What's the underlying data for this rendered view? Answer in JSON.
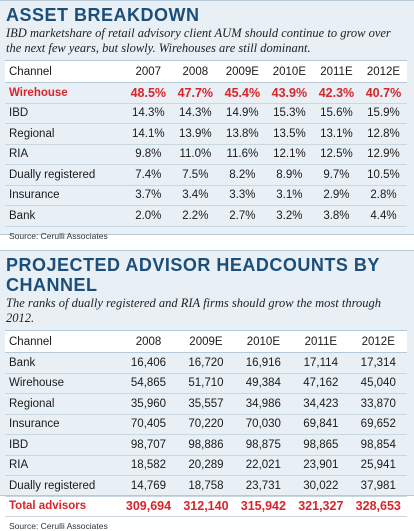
{
  "asset_breakdown": {
    "title": "ASSET BREAKDOWN",
    "subtitle": "IBD marketshare of retail advisory client AUM should continue to grow over the next few years, but slowly. Wirehouses are still dominant.",
    "headers": [
      "Channel",
      "2007",
      "2008",
      "2009E",
      "2010E",
      "2011E",
      "2012E"
    ],
    "rows": [
      {
        "label": "Wirehouse",
        "values": [
          "48.5%",
          "47.7%",
          "45.4%",
          "43.9%",
          "42.3%",
          "40.7%"
        ]
      },
      {
        "label": "IBD",
        "values": [
          "14.3%",
          "14.3%",
          "14.9%",
          "15.3%",
          "15.6%",
          "15.9%"
        ]
      },
      {
        "label": "Regional",
        "values": [
          "14.1%",
          "13.9%",
          "13.8%",
          "13.5%",
          "13.1%",
          "12.8%"
        ]
      },
      {
        "label": "RIA",
        "values": [
          "9.8%",
          "11.0%",
          "11.6%",
          "12.1%",
          "12.5%",
          "12.9%"
        ]
      },
      {
        "label": "Dually registered",
        "values": [
          "7.4%",
          "7.5%",
          "8.2%",
          "8.9%",
          "9.7%",
          "10.5%"
        ]
      },
      {
        "label": "Insurance",
        "values": [
          "3.7%",
          "3.4%",
          "3.3%",
          "3.1%",
          "2.9%",
          "2.8%"
        ]
      },
      {
        "label": "Bank",
        "values": [
          "2.0%",
          "2.2%",
          "2.7%",
          "3.2%",
          "3.8%",
          "4.4%"
        ]
      }
    ],
    "source": "Source: Cerulli Associates"
  },
  "headcounts": {
    "title": "PROJECTED ADVISOR HEADCOUNTS BY CHANNEL",
    "subtitle": "The ranks of dually registered and RIA firms should grow the most through 2012.",
    "headers": [
      "Channel",
      "2008",
      "2009E",
      "2010E",
      "2011E",
      "2012E"
    ],
    "rows": [
      {
        "label": "Bank",
        "values": [
          "16,406",
          "16,720",
          "16,916",
          "17,114",
          "17,314"
        ]
      },
      {
        "label": "Wirehouse",
        "values": [
          "54,865",
          "51,710",
          "49,384",
          "47,162",
          "45,040"
        ]
      },
      {
        "label": "Regional",
        "values": [
          "35,960",
          "35,557",
          "34,986",
          "34,423",
          "33,870"
        ]
      },
      {
        "label": "Insurance",
        "values": [
          "70,405",
          "70,220",
          "70,030",
          "69,841",
          "69,652"
        ]
      },
      {
        "label": "IBD",
        "values": [
          "98,707",
          "98,886",
          "98,875",
          "98,865",
          "98,854"
        ]
      },
      {
        "label": "RIA",
        "values": [
          "18,582",
          "20,289",
          "22,021",
          "23,901",
          "25,941"
        ]
      },
      {
        "label": "Dually registered",
        "values": [
          "14,769",
          "18,758",
          "23,731",
          "30,022",
          "37,981"
        ]
      },
      {
        "label": "Total advisors",
        "values": [
          "309,694",
          "312,140",
          "315,942",
          "321,327",
          "328,653"
        ]
      }
    ],
    "source": "Source: Cerulli Associates"
  },
  "colors": {
    "title": "#1b4f7a",
    "highlight": "#d6262b",
    "panel_bg": "#e8f0f6"
  }
}
